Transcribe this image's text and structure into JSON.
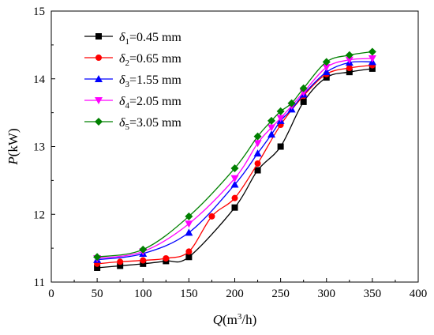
{
  "chart_data": {
    "type": "line",
    "xlabel": {
      "var": "Q",
      "prefix": "(m",
      "sup": "3",
      "suffix": "/h)"
    },
    "ylabel": {
      "var": "P",
      "unit": "(kW)"
    },
    "xlim": [
      0,
      400
    ],
    "ylim": [
      11,
      15
    ],
    "xticks": [
      "0",
      "50",
      "100",
      "150",
      "200",
      "250",
      "300",
      "350",
      "400"
    ],
    "yticks": [
      "11",
      "12",
      "13",
      "14",
      "15"
    ],
    "grid": false,
    "legend_position": "top-left",
    "series": [
      {
        "name": "δ1=0.45 mm",
        "label": {
          "sym": "δ",
          "sub": "1",
          "rest": "=0.45 mm"
        },
        "color": "#000000",
        "marker": "square",
        "x": [
          50,
          75,
          100,
          125,
          150,
          200,
          225,
          250,
          275,
          300,
          325,
          350
        ],
        "y": [
          11.21,
          11.24,
          11.27,
          11.31,
          11.37,
          12.1,
          12.65,
          13.0,
          13.66,
          14.02,
          14.1,
          14.15
        ]
      },
      {
        "name": "δ2=0.65 mm",
        "label": {
          "sym": "δ",
          "sub": "2",
          "rest": "=0.65 mm"
        },
        "color": "#ff0000",
        "marker": "circle",
        "x": [
          50,
          75,
          100,
          125,
          150,
          175,
          200,
          225,
          250,
          275,
          300,
          325,
          350
        ],
        "y": [
          11.27,
          11.3,
          11.32,
          11.35,
          11.45,
          11.97,
          12.24,
          12.75,
          13.32,
          13.75,
          14.07,
          14.16,
          14.2
        ]
      },
      {
        "name": "δ3=1.55 mm",
        "label": {
          "sym": "δ",
          "sub": "3",
          "rest": "=1.55 mm"
        },
        "color": "#0000ff",
        "marker": "triangle-up",
        "x": [
          50,
          100,
          150,
          200,
          225,
          240,
          250,
          262,
          275,
          300,
          325,
          350
        ],
        "y": [
          11.33,
          11.42,
          11.73,
          12.44,
          12.9,
          13.18,
          13.38,
          13.55,
          13.77,
          14.1,
          14.24,
          14.25
        ]
      },
      {
        "name": "δ4=2.05 mm",
        "label": {
          "sym": "δ",
          "sub": "4",
          "rest": "=2.05 mm"
        },
        "color": "#ff00ff",
        "marker": "triangle-down",
        "x": [
          50,
          100,
          150,
          200,
          225,
          240,
          250,
          262,
          275,
          300,
          325,
          350
        ],
        "y": [
          11.35,
          11.45,
          11.86,
          12.53,
          13.05,
          13.28,
          13.42,
          13.6,
          13.8,
          14.17,
          14.28,
          14.3
        ]
      },
      {
        "name": "δ5=3.05 mm",
        "label": {
          "sym": "δ",
          "sub": "5",
          "rest": "=3.05 mm"
        },
        "color": "#008000",
        "marker": "diamond",
        "x": [
          50,
          100,
          150,
          200,
          225,
          240,
          250,
          262,
          275,
          300,
          325,
          350
        ],
        "y": [
          11.37,
          11.48,
          11.97,
          12.68,
          13.15,
          13.38,
          13.52,
          13.64,
          13.86,
          14.25,
          14.35,
          14.4
        ]
      }
    ]
  }
}
